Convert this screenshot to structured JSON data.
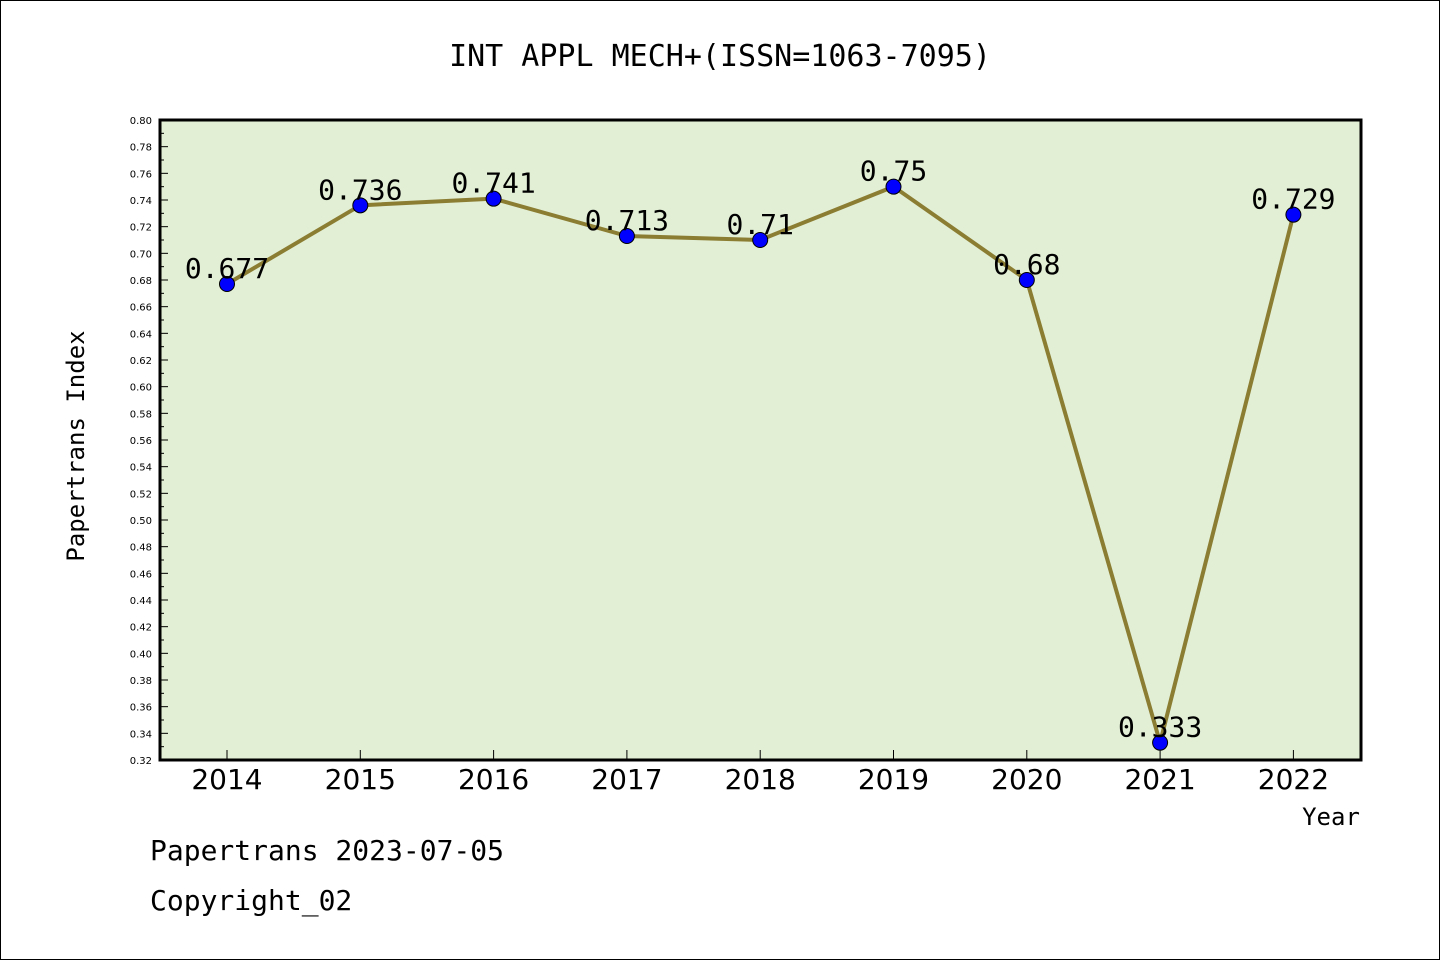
{
  "chart_data": {
    "type": "line",
    "title": "INT APPL MECH+(ISSN=1063-7095)",
    "xlabel": "Year",
    "ylabel": "Papertrans Index",
    "categories": [
      "2014",
      "2015",
      "2016",
      "2017",
      "2018",
      "2019",
      "2020",
      "2021",
      "2022"
    ],
    "series": [
      {
        "values": [
          0.677,
          0.736,
          0.741,
          0.713,
          0.71,
          0.75,
          0.68,
          0.333,
          0.729
        ]
      }
    ],
    "data_labels": [
      "0.677",
      "0.736",
      "0.741",
      "0.713",
      "0.71",
      "0.75",
      "0.68",
      "0.333",
      "0.729"
    ],
    "ylim": [
      0.32,
      0.8
    ],
    "yticks": [
      "0.32",
      "0.34",
      "0.36",
      "0.38",
      "0.40",
      "0.42",
      "0.44",
      "0.46",
      "0.48",
      "0.50",
      "0.52",
      "0.54",
      "0.56",
      "0.58",
      "0.60",
      "0.62",
      "0.64",
      "0.66",
      "0.68",
      "0.70",
      "0.72",
      "0.74",
      "0.76",
      "0.78",
      "0.80"
    ],
    "grid": false,
    "legend": "none",
    "colors": {
      "plot_background": "#e2efd5",
      "line": "#8b7d32",
      "marker": "#0000ff"
    }
  },
  "footer": {
    "line1": "Papertrans 2023-07-05",
    "line2": "Copyright_02"
  }
}
